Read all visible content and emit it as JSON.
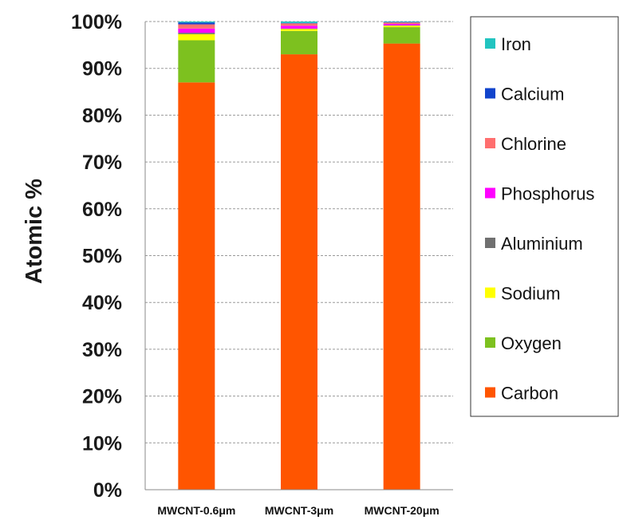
{
  "chart_data": {
    "type": "bar",
    "stacked": true,
    "categories": [
      "MWCNT-0.6μm",
      "MWCNT-3μm",
      "MWCNT-20μm"
    ],
    "ylabel": "Atomic %",
    "xlabel": "",
    "ylim": [
      0,
      100
    ],
    "yticks": [
      "0%",
      "10%",
      "20%",
      "30%",
      "40%",
      "50%",
      "60%",
      "70%",
      "80%",
      "90%",
      "100%"
    ],
    "grid": "horizontal dashed",
    "legend_position": "right",
    "series": [
      {
        "name": "Carbon",
        "color": "#ff5500",
        "values": [
          87.0,
          93.0,
          95.3
        ]
      },
      {
        "name": "Oxygen",
        "color": "#7dc11f",
        "values": [
          9.0,
          5.0,
          3.5
        ]
      },
      {
        "name": "Sodium",
        "color": "#ffff00",
        "values": [
          1.3,
          0.4,
          0.3
        ]
      },
      {
        "name": "Aluminium",
        "color": "#707070",
        "values": [
          0.3,
          0.1,
          0.1
        ]
      },
      {
        "name": "Phosphorus",
        "color": "#ff00ff",
        "values": [
          0.9,
          0.6,
          0.3
        ]
      },
      {
        "name": "Chlorine",
        "color": "#ff6f6f",
        "values": [
          0.9,
          0.5,
          0.3
        ]
      },
      {
        "name": "Calcium",
        "color": "#1144cc",
        "values": [
          0.4,
          0.1,
          0.1
        ]
      },
      {
        "name": "Iron",
        "color": "#22c4c0",
        "values": [
          0.2,
          0.3,
          0.1
        ]
      }
    ]
  }
}
